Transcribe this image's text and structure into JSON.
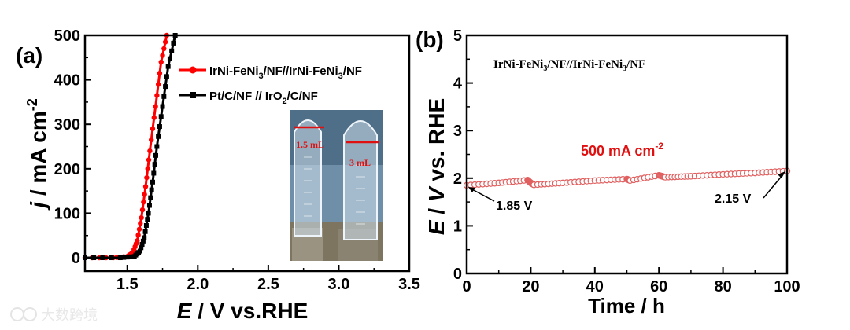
{
  "watermark": "大数跨境",
  "chart_data": [
    {
      "panel": "(a)",
      "type": "line",
      "xlabel_italic": "E",
      "xlabel_rest": " / V vs.RHE",
      "ylabel_italic": "j",
      "ylabel_rest": " / mA cm",
      "ylabel_sup": "-2",
      "xlim": [
        1.2,
        3.5
      ],
      "ylim": [
        -30,
        500
      ],
      "xticks": [
        1.5,
        2.0,
        2.5,
        3.0,
        3.5
      ],
      "xtick_labels": [
        "1.5",
        "2.0",
        "2.5",
        "3.0",
        "3.5"
      ],
      "yticks": [
        0,
        100,
        200,
        300,
        400,
        500
      ],
      "ytick_labels": [
        "0",
        "100",
        "200",
        "300",
        "400",
        "500"
      ],
      "series": [
        {
          "name": "IrNi-FeNi3/NF//IrNi-FeNi3/NF",
          "legend_parts": [
            "IrNi-FeNi",
            "3",
            "/NF//IrNi-FeNi",
            "3",
            "/NF"
          ],
          "color": "#ff0000",
          "marker": "circle",
          "x": [
            1.2,
            1.4,
            1.5,
            1.54,
            1.57,
            1.6,
            1.63,
            1.66,
            1.7,
            1.74,
            1.78
          ],
          "y": [
            0,
            0,
            3,
            12,
            38,
            90,
            160,
            240,
            340,
            440,
            500
          ]
        },
        {
          "name": "Pt/C/NF // IrO2/C/NF",
          "legend_parts": [
            "Pt/C/NF // IrO",
            "2",
            "/C/NF"
          ],
          "color": "#000000",
          "marker": "square",
          "x": [
            1.2,
            1.45,
            1.55,
            1.59,
            1.62,
            1.65,
            1.68,
            1.71,
            1.75,
            1.79,
            1.84
          ],
          "y": [
            0,
            0,
            3,
            15,
            45,
            100,
            170,
            250,
            340,
            430,
            500
          ]
        }
      ],
      "inset": {
        "label_left": "1.5 mL",
        "label_right": "3 mL"
      }
    },
    {
      "panel": "(b)",
      "type": "line",
      "xlabel": "Time / h",
      "ylabel_italic_1": "E",
      "ylabel_mid": " / ",
      "ylabel_italic_2": "V",
      "ylabel_rest": " vs. RHE",
      "xlim": [
        0,
        100
      ],
      "ylim": [
        0,
        5
      ],
      "xticks": [
        0,
        20,
        40,
        60,
        80,
        100
      ],
      "xtick_labels": [
        "0",
        "20",
        "40",
        "60",
        "80",
        "100"
      ],
      "yticks": [
        0,
        1,
        2,
        3,
        4,
        5
      ],
      "ytick_labels": [
        "0",
        "1",
        "2",
        "3",
        "4",
        "5"
      ],
      "title_parts": [
        "IrNi-FeNi",
        "3",
        "/NF//IrNi-FeNi",
        "3",
        "/NF"
      ],
      "current_label": "500 mA cm",
      "current_sup": "-2",
      "series": [
        {
          "name": "IrNi-FeNi3/NF//IrNi-FeNi3/NF",
          "color": "#e06060",
          "marker": "open-circle",
          "x": [
            0,
            10,
            19,
            20,
            21,
            30,
            40,
            50,
            51,
            60,
            62,
            70,
            80,
            90,
            100
          ],
          "y": [
            1.85,
            1.9,
            1.96,
            1.9,
            1.86,
            1.9,
            1.95,
            1.98,
            1.95,
            2.06,
            2.02,
            2.04,
            2.08,
            2.11,
            2.15
          ]
        }
      ],
      "annotations": [
        {
          "text": "1.85 V",
          "x": 0,
          "y": 1.85
        },
        {
          "text": "2.15 V",
          "x": 100,
          "y": 2.15
        }
      ]
    }
  ]
}
